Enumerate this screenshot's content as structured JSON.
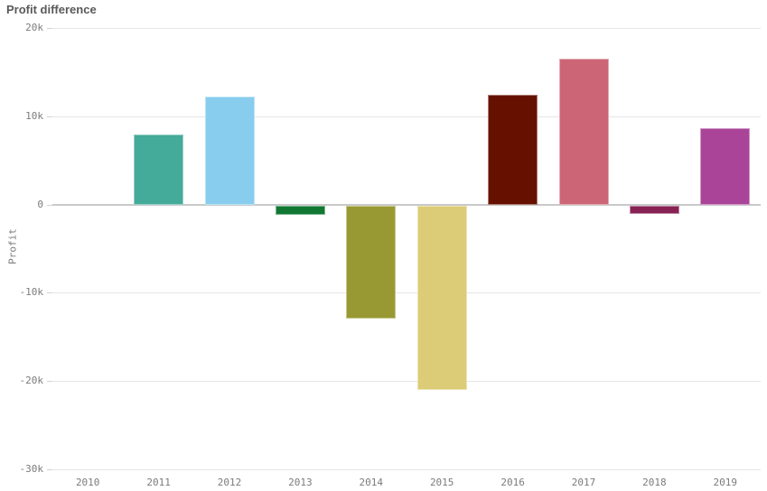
{
  "header": {
    "title": "Profit difference"
  },
  "chart_data": {
    "type": "bar",
    "title": "Profit difference",
    "xlabel": "",
    "ylabel": "Profit",
    "categories": [
      "2010",
      "2011",
      "2012",
      "2013",
      "2014",
      "2015",
      "2016",
      "2017",
      "2018",
      "2019"
    ],
    "values": [
      0,
      7900,
      12200,
      -1200,
      -12900,
      -21000,
      12400,
      16500,
      -1100,
      8600
    ],
    "bar_colors": [
      "#332288",
      "#44aa99",
      "#88ccee",
      "#117733",
      "#999933",
      "#ddcc77",
      "#661100",
      "#cc6677",
      "#882255",
      "#aa4499"
    ],
    "ylim": [
      -30000,
      20000
    ],
    "yticks": [
      {
        "value": 20000,
        "label": "20k"
      },
      {
        "value": 10000,
        "label": "10k"
      },
      {
        "value": 0,
        "label": "0"
      },
      {
        "value": -10000,
        "label": "-10k"
      },
      {
        "value": -20000,
        "label": "-20k"
      },
      {
        "value": -30000,
        "label": "-30k"
      }
    ],
    "grid": true,
    "legend": false,
    "colors": {
      "gridline": "#e6e6e6",
      "zero_line": "#c9c9c9",
      "tick_text": "#7b7b7b",
      "title_text": "#595959",
      "background": "#ffffff"
    }
  }
}
